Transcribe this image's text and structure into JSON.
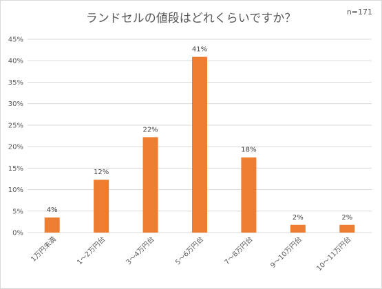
{
  "chart_data": {
    "type": "bar",
    "title": "ランドセルの値段はどれくらいですか？",
    "note": "n=171",
    "categories": [
      "1万円未満",
      "1～2万円台",
      "3～4万円台",
      "5～6万円台",
      "7～8万円台",
      "9～10万円台",
      "10～11万円台"
    ],
    "values": [
      3.5,
      12.3,
      22.2,
      40.9,
      17.5,
      1.8,
      1.8
    ],
    "data_labels": [
      "4%",
      "12%",
      "22%",
      "41%",
      "18%",
      "2%",
      "2%"
    ],
    "y_ticks": [
      "0%",
      "5%",
      "10%",
      "15%",
      "20%",
      "25%",
      "30%",
      "35%",
      "40%",
      "45%"
    ],
    "ylim": [
      0,
      45
    ],
    "grid": true,
    "bar_color": "#ED7D31",
    "grid_color": "#d9d9d9",
    "text_color": "#595959"
  }
}
